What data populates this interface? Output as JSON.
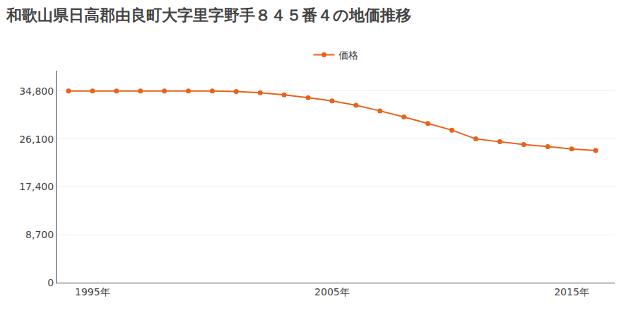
{
  "chart_data": {
    "type": "line",
    "title": "和歌山県日高郡由良町大字里字野手８４５番４の地価推移",
    "x": [
      1994,
      1995,
      1996,
      1997,
      1998,
      1999,
      2000,
      2001,
      2002,
      2003,
      2004,
      2005,
      2006,
      2007,
      2008,
      2009,
      2010,
      2011,
      2012,
      2013,
      2014,
      2015,
      2016
    ],
    "series": [
      {
        "name": "価格",
        "color": "#e8621a",
        "marker": "circle",
        "values": [
          34800,
          34800,
          34800,
          34800,
          34800,
          34800,
          34800,
          34700,
          34500,
          34100,
          33600,
          33000,
          32200,
          31200,
          30100,
          28900,
          27700,
          26100,
          25600,
          25100,
          24700,
          24300,
          24000
        ]
      }
    ],
    "xlim": [
      1993.5,
      2016.8
    ],
    "xticks": [
      {
        "value": 1995,
        "label": "1995年"
      },
      {
        "value": 2005,
        "label": "2005年"
      },
      {
        "value": 2015,
        "label": "2015年"
      }
    ],
    "ylim": [
      0,
      38500
    ],
    "yticks": [
      0,
      {
        "value": 8700,
        "label": "8,700"
      },
      {
        "value": 17400,
        "label": "17,400"
      },
      {
        "value": 26100,
        "label": "26,100"
      },
      {
        "value": 34800,
        "label": "34,800"
      }
    ],
    "grid": true,
    "legend": "top"
  }
}
